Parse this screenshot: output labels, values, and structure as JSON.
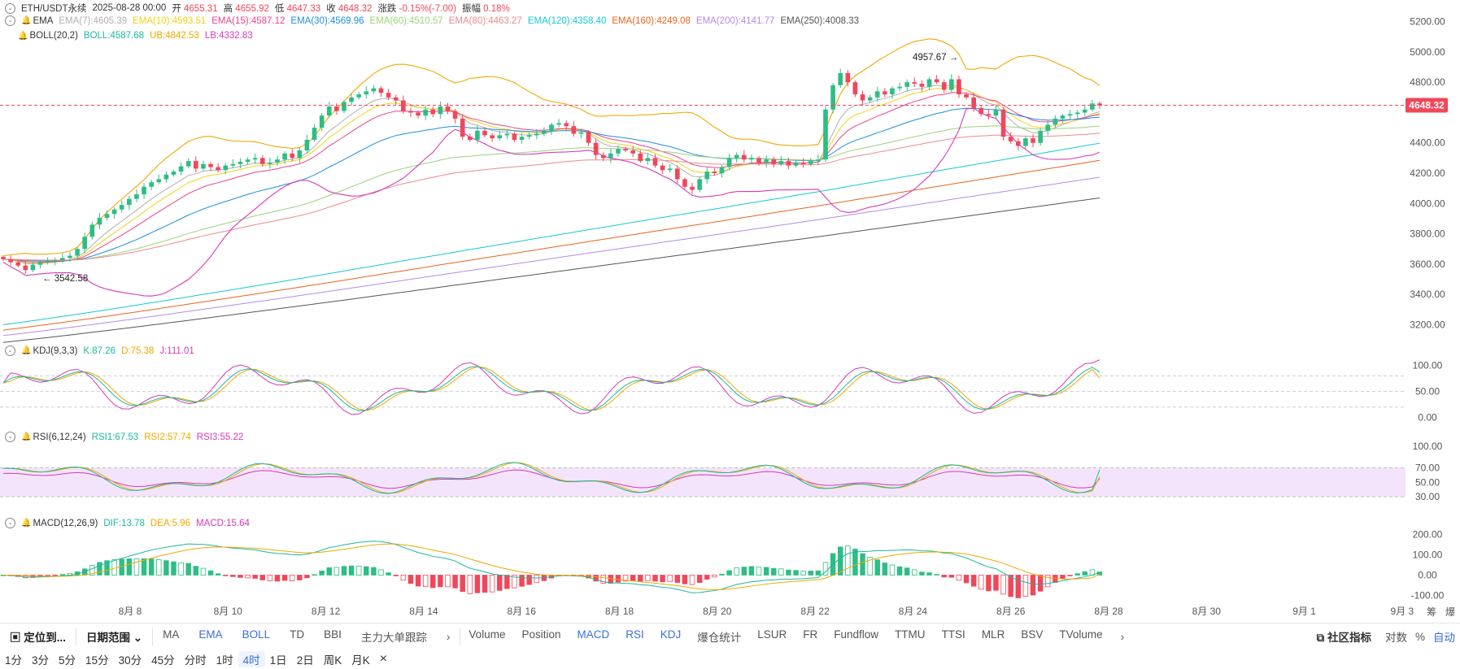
{
  "header": {
    "symbol": "ETH/USDT永续",
    "datetime": "2025-08-28 00:00",
    "open_label": "开",
    "open": "4655.31",
    "high_label": "高",
    "high": "4655.92",
    "low_label": "低",
    "low": "4647.33",
    "close_label": "收",
    "close": "4648.32",
    "change_label": "涨跌",
    "change": "-0.15%(-7.00)",
    "amp_label": "振幅",
    "amp": "0.18%"
  },
  "ema_row": {
    "name": "EMA",
    "items": [
      {
        "label": "EMA(7):4605.39",
        "color": "#b0b0b0"
      },
      {
        "label": "EMA(10):4593.51",
        "color": "#f2d21b"
      },
      {
        "label": "EMA(15):4587.12",
        "color": "#e8458b"
      },
      {
        "label": "EMA(30):4569.96",
        "color": "#1c8ee0"
      },
      {
        "label": "EMA(60):4510.57",
        "color": "#9cd37a"
      },
      {
        "label": "EMA(80):4463.27",
        "color": "#f08a8a"
      },
      {
        "label": "EMA(120):4358.40",
        "color": "#16c9d4"
      },
      {
        "label": "EMA(160):4249.08",
        "color": "#e8651d"
      },
      {
        "label": "EMA(200):4141.77",
        "color": "#b58be8"
      },
      {
        "label": "EMA(250):4008.33",
        "color": "#555555"
      }
    ]
  },
  "boll_row": {
    "name": "BOLL(20,2)",
    "items": [
      {
        "label": "BOLL:4587.68",
        "color": "#1bb8a0"
      },
      {
        "label": "UB:4842.53",
        "color": "#f2a800"
      },
      {
        "label": "LB:4332.83",
        "color": "#d63ab8"
      }
    ]
  },
  "kdj_row": {
    "name": "KDJ(9,3,3)",
    "items": [
      {
        "label": "K:87.26",
        "color": "#1bb8a0"
      },
      {
        "label": "D:75.38",
        "color": "#f2a800"
      },
      {
        "label": "J:111.01",
        "color": "#d63ab8"
      }
    ]
  },
  "rsi_row": {
    "name": "RSI(6,12,24)",
    "items": [
      {
        "label": "RSI1:67.53",
        "color": "#1bb8a0"
      },
      {
        "label": "RSI2:57.74",
        "color": "#f2a800"
      },
      {
        "label": "RSI3:55.22",
        "color": "#d63ab8"
      }
    ]
  },
  "macd_row": {
    "name": "MACD(12,26,9)",
    "items": [
      {
        "label": "DIF:13.78",
        "color": "#1bb8a0"
      },
      {
        "label": "DEA:5.96",
        "color": "#f2a800"
      },
      {
        "label": "MACD:15.64",
        "color": "#d63ab8"
      }
    ]
  },
  "chart_data": {
    "type": "candlestick",
    "price_axis_ticks": [
      "5200.00",
      "5000.00",
      "4800.00",
      "4400.00",
      "4200.00",
      "4000.00",
      "3800.00",
      "3600.00",
      "3400.00",
      "3200.00"
    ],
    "price_ylim": [
      3100,
      5300
    ],
    "last_price_tag": "4648.32",
    "max_annotation": "4957.67 →",
    "min_annotation": "← 3542.58",
    "x_labels": [
      "8月 8",
      "8月 10",
      "8月 12",
      "8月 14",
      "8月 16",
      "8月 18",
      "8月 20",
      "8月 22",
      "8月 24",
      "8月 26",
      "8月 28",
      "8月 30",
      "9月 1",
      "9月 3"
    ],
    "close_path": [
      3632,
      3612,
      3590,
      3560,
      3595,
      3612,
      3618,
      3625,
      3640,
      3655,
      3700,
      3780,
      3860,
      3905,
      3930,
      3960,
      3990,
      4030,
      4060,
      4110,
      4140,
      4160,
      4190,
      4210,
      4245,
      4280,
      4230,
      4260,
      4240,
      4220,
      4250,
      4260,
      4275,
      4290,
      4300,
      4260,
      4270,
      4290,
      4330,
      4300,
      4350,
      4420,
      4500,
      4580,
      4640,
      4610,
      4670,
      4700,
      4720,
      4740,
      4760,
      4730,
      4700,
      4680,
      4610,
      4600,
      4580,
      4620,
      4590,
      4640,
      4610,
      4560,
      4440,
      4420,
      4480,
      4450,
      4430,
      4450,
      4460,
      4420,
      4440,
      4450,
      4460,
      4480,
      4520,
      4530,
      4510,
      4460,
      4470,
      4400,
      4320,
      4300,
      4330,
      4360,
      4350,
      4330,
      4280,
      4300,
      4250,
      4220,
      4230,
      4160,
      4110,
      4090,
      4160,
      4210,
      4200,
      4240,
      4300,
      4320,
      4290,
      4300,
      4270,
      4290,
      4260,
      4280,
      4250,
      4270,
      4260,
      4280,
      4290,
      4620,
      4780,
      4860,
      4800,
      4720,
      4680,
      4700,
      4740,
      4720,
      4760,
      4770,
      4800,
      4790,
      4770,
      4820,
      4800,
      4750,
      4820,
      4720,
      4700,
      4630,
      4590,
      4580,
      4620,
      4440,
      4410,
      4380,
      4430,
      4400,
      4480,
      4520,
      4560,
      4580,
      4590,
      4600,
      4620,
      4660,
      4648
    ],
    "ema_series_end": [
      4605.39,
      4593.51,
      4587.12,
      4569.96,
      4510.57,
      4463.27,
      4358.4,
      4249.08,
      4141.77,
      4008.33
    ],
    "boll": {
      "mid": 4587.68,
      "upper": 4842.53,
      "lower": 4332.83
    },
    "kdj_axis_ticks": [
      "100.00",
      "50.00",
      "0.00"
    ],
    "kdj_levels": [
      80,
      50,
      20
    ],
    "kdj_last": {
      "K": 87.26,
      "D": 75.38,
      "J": 111.01
    },
    "rsi_axis_ticks": [
      "100.00",
      "70.00",
      "50.00",
      "30.00"
    ],
    "rsi_band": [
      30,
      70
    ],
    "rsi_last": {
      "RSI1": 67.53,
      "RSI2": 57.74,
      "RSI3": 55.22
    },
    "macd_axis_ticks": [
      "200.00",
      "100.00",
      "0.00",
      "-100.00"
    ],
    "macd_last": {
      "DIF": 13.78,
      "DEA": 5.96,
      "MACD": 15.64
    },
    "colors": {
      "up": "#2ebd85",
      "down": "#f0475a",
      "grid": "#f0f0f0"
    }
  },
  "toolbar": {
    "goto": "定位到...",
    "range": "日期范围",
    "main_inds": [
      "MA",
      "EMA",
      "BOLL",
      "TD",
      "BBI",
      "主力大单跟踪"
    ],
    "sub_inds": [
      "Volume",
      "Position",
      "MACD",
      "RSI",
      "KDJ",
      "爆仓统计",
      "LSUR",
      "FR",
      "Fundflow",
      "TTMU",
      "TTSI",
      "MLR",
      "BSV",
      "TVolume"
    ],
    "community": "社区指标",
    "log": "对数",
    "percent": "%",
    "auto": "自动",
    "right_icons": [
      "筹",
      "爆"
    ]
  },
  "intervals": [
    "1分",
    "3分",
    "5分",
    "15分",
    "30分",
    "45分",
    "分时",
    "1时",
    "4时",
    "1日",
    "2日",
    "周K",
    "月K"
  ],
  "active_interval": "4时",
  "close_icon": "×"
}
